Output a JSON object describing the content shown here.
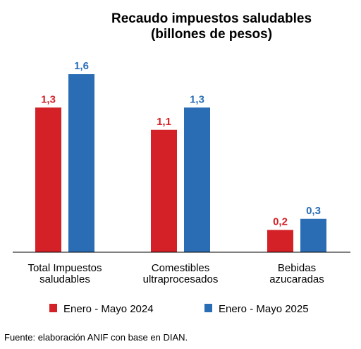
{
  "chart_data": {
    "type": "bar",
    "title": "Recaudo impuestos saludables",
    "subtitle": "(billones de pesos)",
    "categories": [
      [
        "Total Impuestos",
        "saludables"
      ],
      [
        "Comestibles",
        "ultraprocesados"
      ],
      [
        "Bebidas",
        "azucaradas"
      ]
    ],
    "series": [
      {
        "name": "Enero - Mayo 2024",
        "color": "#d42027",
        "values": [
          1.3,
          1.1,
          0.2
        ],
        "labels": [
          "1,3",
          "1,1",
          "0,2"
        ]
      },
      {
        "name": "Enero - Mayo 2025",
        "color": "#2a6db5",
        "values": [
          1.6,
          1.3,
          0.3
        ],
        "labels": [
          "1,6",
          "1,3",
          "0,3"
        ]
      }
    ],
    "ylim": [
      0,
      1.6
    ],
    "grid": false,
    "legend": "bottom",
    "label_colors": {
      "series_2024": "#d42027",
      "series_2025": "#2a6db5"
    }
  },
  "source": "Fuente: elaboración ANIF con base en DIAN."
}
